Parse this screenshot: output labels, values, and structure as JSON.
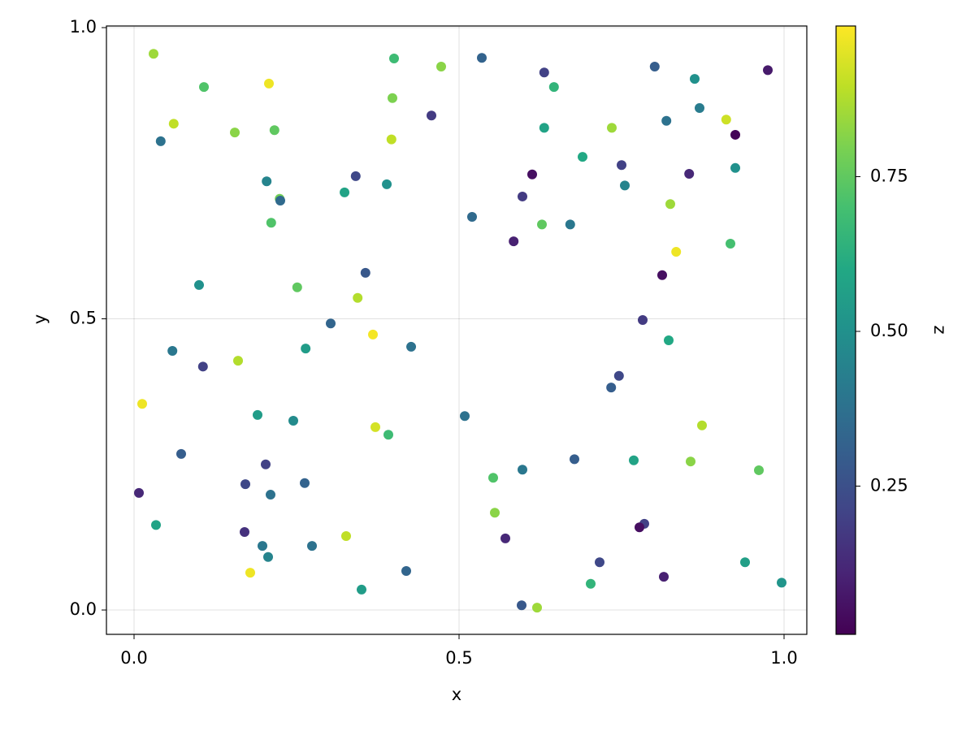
{
  "chart_data": {
    "type": "scatter",
    "xlabel": "x",
    "ylabel": "y",
    "colorbar_label": "z",
    "colormap": "viridis",
    "xlim": [
      -0.0425,
      1.035
    ],
    "ylim": [
      -0.0418,
      1.0028
    ],
    "zlim": [
      0.0105,
      0.9934
    ],
    "xticks": [
      {
        "value": 0,
        "label": "0.0"
      },
      {
        "value": 0.5,
        "label": "0.5"
      },
      {
        "value": 1,
        "label": "1.0"
      }
    ],
    "yticks": [
      {
        "value": 0,
        "label": "0.0"
      },
      {
        "value": 0.5,
        "label": "0.5"
      },
      {
        "value": 1,
        "label": "1.0"
      }
    ],
    "zticks": [
      0.25,
      {
        "value": 0.5,
        "label": "0.50"
      },
      0.75
    ],
    "grid": true,
    "x": [
      0.03,
      0.1075,
      0.2075,
      0.061,
      0.155,
      0.216,
      0.041,
      0.4,
      0.4725,
      0.535,
      0.631,
      0.646,
      0.801,
      0.8625,
      0.975,
      0.3975,
      0.4575,
      0.631,
      0.735,
      0.819,
      0.87,
      0.911,
      0.925,
      0.396,
      0.69,
      0.75,
      0.925,
      0.6125,
      0.854,
      0.341,
      0.204,
      0.3238,
      0.3888,
      0.755,
      0.224,
      0.225,
      0.5975,
      0.825,
      0.52,
      0.211,
      0.6275,
      0.671,
      0.584,
      0.9175,
      0.834,
      0.356,
      0.8125,
      0.1,
      0.251,
      0.344,
      0.3025,
      0.7825,
      0.3675,
      0.059,
      0.264,
      0.4263,
      0.8225,
      0.16,
      0.106,
      0.746,
      0.734,
      0.0125,
      0.50875,
      0.19,
      0.245,
      0.37125,
      0.87375,
      0.39125,
      0.0725,
      0.6775,
      0.76875,
      0.85625,
      0.2025,
      0.5975,
      0.96125,
      0.5525,
      0.0075,
      0.17125,
      0.2625,
      0.21,
      0.555,
      0.03375,
      0.785,
      0.7775,
      0.17,
      0.32625,
      0.57125,
      0.1975,
      0.27375,
      0.20625,
      0.71625,
      0.94,
      0.17875,
      0.41875,
      0.815,
      0.99625,
      0.7025,
      0.35,
      0.59625,
      0.62
    ],
    "y": [
      0.955,
      0.898,
      0.904,
      0.835,
      0.82,
      0.824,
      0.805,
      0.947,
      0.933,
      0.948,
      0.923,
      0.898,
      0.933,
      0.912,
      0.927,
      0.879,
      0.849,
      0.828,
      0.828,
      0.84,
      0.862,
      0.842,
      0.816,
      0.808,
      0.778,
      0.764,
      0.759,
      0.748,
      0.749,
      0.745,
      0.736,
      0.717,
      0.731,
      0.729,
      0.706,
      0.703,
      0.71,
      0.697,
      0.675,
      0.665,
      0.662,
      0.662,
      0.633,
      0.629,
      0.615,
      0.579,
      0.575,
      0.558,
      0.554,
      0.536,
      0.492,
      0.498,
      0.473,
      0.445,
      0.449,
      0.452,
      0.463,
      0.428,
      0.418,
      0.402,
      0.382,
      0.354,
      0.333,
      0.335,
      0.325,
      0.314,
      0.317,
      0.301,
      0.268,
      0.259,
      0.257,
      0.255,
      0.25,
      0.241,
      0.24,
      0.227,
      0.201,
      0.216,
      0.218,
      0.198,
      0.167,
      0.146,
      0.148,
      0.142,
      0.134,
      0.127,
      0.123,
      0.11,
      0.11,
      0.091,
      0.082,
      0.082,
      0.064,
      0.067,
      0.057,
      0.047,
      0.045,
      0.035,
      0.008,
      0.004
    ],
    "z": [
      0.85,
      0.72,
      0.97,
      0.9,
      0.82,
      0.75,
      0.38,
      0.68,
      0.82,
      0.32,
      0.2,
      0.65,
      0.3,
      0.5,
      0.08,
      0.8,
      0.18,
      0.58,
      0.85,
      0.38,
      0.42,
      0.92,
      0.02,
      0.9,
      0.6,
      0.2,
      0.5,
      0.05,
      0.12,
      0.22,
      0.45,
      0.58,
      0.5,
      0.45,
      0.78,
      0.35,
      0.18,
      0.85,
      0.35,
      0.72,
      0.75,
      0.4,
      0.1,
      0.7,
      0.97,
      0.28,
      0.05,
      0.5,
      0.75,
      0.88,
      0.33,
      0.18,
      0.98,
      0.4,
      0.55,
      0.38,
      0.6,
      0.88,
      0.2,
      0.22,
      0.3,
      0.97,
      0.38,
      0.55,
      0.48,
      0.93,
      0.88,
      0.68,
      0.3,
      0.3,
      0.58,
      0.82,
      0.2,
      0.4,
      0.75,
      0.72,
      0.12,
      0.22,
      0.32,
      0.38,
      0.82,
      0.58,
      0.2,
      0.05,
      0.15,
      0.9,
      0.12,
      0.4,
      0.38,
      0.45,
      0.22,
      0.56,
      0.97,
      0.33,
      0.1,
      0.52,
      0.65,
      0.55,
      0.28,
      0.85
    ]
  }
}
